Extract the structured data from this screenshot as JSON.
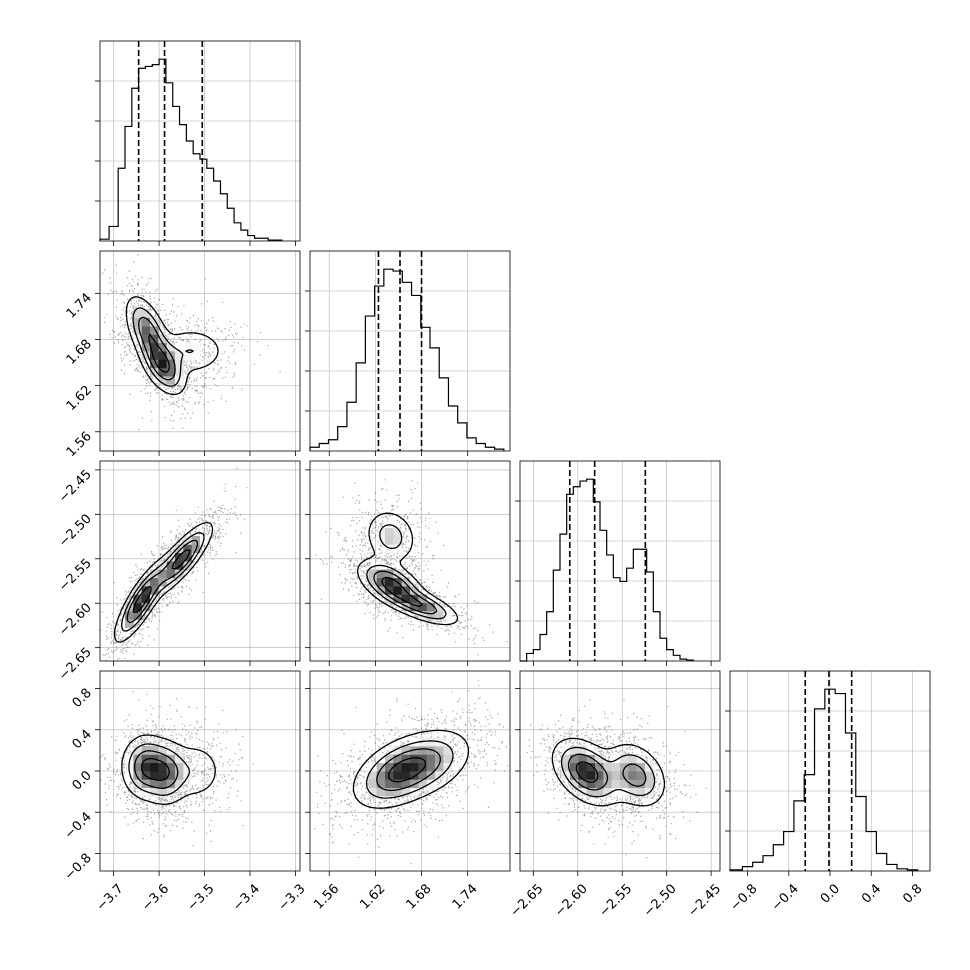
{
  "chart_data": {
    "type": "corner",
    "grid": true,
    "parameters": [
      {
        "range": [
          -3.73,
          -3.29
        ],
        "ticks": [
          -3.7,
          -3.6,
          -3.5,
          -3.4,
          -3.3
        ],
        "tick_labels": [
          "−3.7",
          "−3.6",
          "−3.5",
          "−3.4",
          "−3.3"
        ],
        "quantiles": [
          -3.645,
          -3.588,
          -3.505
        ]
      },
      {
        "range": [
          1.535,
          1.795
        ],
        "ticks": [
          1.56,
          1.62,
          1.68,
          1.74
        ],
        "tick_labels": [
          "1.56",
          "1.62",
          "1.68",
          "1.74"
        ],
        "quantiles": [
          1.624,
          1.652,
          1.68
        ]
      },
      {
        "range": [
          -2.665,
          -2.44
        ],
        "ticks": [
          -2.65,
          -2.6,
          -2.55,
          -2.5,
          -2.45
        ],
        "tick_labels": [
          "−2.65",
          "−2.60",
          "−2.55",
          "−2.50",
          "−2.45"
        ],
        "quantiles": [
          -2.609,
          -2.581,
          -2.524
        ]
      },
      {
        "range": [
          -0.97,
          0.97
        ],
        "ticks": [
          -0.8,
          -0.4,
          0.0,
          0.4,
          0.8
        ],
        "tick_labels": [
          "−0.8",
          "−0.4",
          "0.0",
          "0.4",
          "0.8"
        ],
        "quantiles": [
          -0.24,
          -0.01,
          0.21
        ]
      }
    ],
    "histograms": [
      {
        "edges": [
          -3.73,
          -3.71,
          -3.69,
          -3.675,
          -3.66,
          -3.645,
          -3.63,
          -3.615,
          -3.6,
          -3.585,
          -3.57,
          -3.555,
          -3.54,
          -3.525,
          -3.51,
          -3.495,
          -3.48,
          -3.465,
          -3.45,
          -3.435,
          -3.42,
          -3.405,
          -3.39,
          -3.36,
          -3.33
        ],
        "counts": [
          0.01,
          0.08,
          0.4,
          0.63,
          0.84,
          0.95,
          0.96,
          0.97,
          1.0,
          0.87,
          0.74,
          0.64,
          0.55,
          0.48,
          0.45,
          0.4,
          0.33,
          0.26,
          0.18,
          0.1,
          0.06,
          0.03,
          0.015,
          0.005
        ]
      },
      {
        "edges": [
          1.535,
          1.547,
          1.559,
          1.571,
          1.583,
          1.595,
          1.607,
          1.619,
          1.631,
          1.643,
          1.655,
          1.667,
          1.679,
          1.691,
          1.703,
          1.715,
          1.727,
          1.739,
          1.751,
          1.763,
          1.775,
          1.787
        ],
        "counts": [
          0.02,
          0.04,
          0.06,
          0.13,
          0.26,
          0.47,
          0.72,
          0.88,
          0.97,
          0.96,
          0.9,
          0.83,
          0.66,
          0.55,
          0.39,
          0.24,
          0.15,
          0.07,
          0.04,
          0.02,
          0.01
        ]
      },
      {
        "edges": [
          -2.665,
          -2.6575,
          -2.65,
          -2.6425,
          -2.635,
          -2.6275,
          -2.62,
          -2.6125,
          -2.605,
          -2.5975,
          -2.59,
          -2.5825,
          -2.575,
          -2.5675,
          -2.56,
          -2.5525,
          -2.545,
          -2.5375,
          -2.53,
          -2.5225,
          -2.515,
          -2.5075,
          -2.5,
          -2.4925,
          -2.485,
          -2.4775,
          -2.47
        ],
        "counts": [
          0.0,
          0.04,
          0.06,
          0.14,
          0.26,
          0.48,
          0.67,
          0.88,
          0.92,
          0.95,
          0.96,
          0.84,
          0.69,
          0.56,
          0.44,
          0.42,
          0.49,
          0.59,
          0.59,
          0.47,
          0.26,
          0.12,
          0.06,
          0.03,
          0.01,
          0.005
        ]
      },
      {
        "edges": [
          -0.97,
          -0.85,
          -0.75,
          -0.65,
          -0.55,
          -0.45,
          -0.35,
          -0.25,
          -0.15,
          -0.05,
          0.05,
          0.15,
          0.25,
          0.35,
          0.45,
          0.55,
          0.65,
          0.75,
          0.85
        ],
        "counts": [
          0.005,
          0.02,
          0.04,
          0.07,
          0.12,
          0.18,
          0.32,
          0.44,
          0.74,
          0.83,
          0.81,
          0.63,
          0.34,
          0.18,
          0.08,
          0.03,
          0.01,
          0.005
        ]
      }
    ],
    "pairs": [
      {
        "x_param": 0,
        "y_param": 1,
        "cov": [
          [
            0.0028,
            -0.00042
          ],
          [
            -0.00042,
            0.00125
          ]
        ],
        "components": [
          {
            "mean": [
              -3.625,
              1.69
            ],
            "cov": [
              [
                0.0006,
                -0.00032
              ],
              [
                -0.00032,
                0.00056
              ]
            ],
            "w": 0.4
          },
          {
            "mean": [
              -3.59,
              1.645
            ],
            "cov": [
              [
                0.0006,
                -0.00022
              ],
              [
                -0.00022,
                0.00035
              ]
            ],
            "w": 0.35
          },
          {
            "mean": [
              -3.53,
              1.665
            ],
            "cov": [
              [
                0.0018,
                0.0
              ],
              [
                0.0,
                0.00028
              ]
            ],
            "w": 0.25
          }
        ]
      },
      {
        "x_param": 0,
        "y_param": 2,
        "cov": [
          [
            0.0028,
            0.0012
          ],
          [
            0.0012,
            0.00095
          ]
        ],
        "components": [
          {
            "mean": [
              -3.64,
              -2.598
            ],
            "cov": [
              [
                0.0008,
                0.00052
              ],
              [
                0.00052,
                0.0005
              ]
            ],
            "w": 0.5
          },
          {
            "mean": [
              -3.55,
              -2.55
            ],
            "cov": [
              [
                0.0011,
                0.00055
              ],
              [
                0.00055,
                0.0004
              ]
            ],
            "w": 0.5
          }
        ]
      },
      {
        "x_param": 0,
        "y_param": 3,
        "cov": [
          [
            0.0028,
            0.0
          ],
          [
            0.0,
            0.042
          ]
        ],
        "components": [
          {
            "mean": [
              -3.63,
              0.04
            ],
            "cov": [
              [
                0.0007,
                0.0
              ],
              [
                0.0,
                0.024
              ]
            ],
            "w": 0.45
          },
          {
            "mean": [
              -3.585,
              -0.02
            ],
            "cov": [
              [
                0.0006,
                0.0
              ],
              [
                0.0,
                0.024
              ]
            ],
            "w": 0.35
          },
          {
            "mean": [
              -3.52,
              0.0
            ],
            "cov": [
              [
                0.0012,
                0.0
              ],
              [
                0.0,
                0.026
              ]
            ],
            "w": 0.2
          }
        ]
      },
      {
        "x_param": 1,
        "y_param": 2,
        "cov": [
          [
            0.00125,
            -0.00045
          ],
          [
            -0.00045,
            0.00095
          ]
        ],
        "components": [
          {
            "mean": [
              1.64,
              -2.578
            ],
            "cov": [
              [
                0.00045,
                -0.00015
              ],
              [
                -0.00015,
                0.00018
              ]
            ],
            "w": 0.45
          },
          {
            "mean": [
              1.68,
              -2.603
            ],
            "cov": [
              [
                0.0006,
                -0.00018
              ],
              [
                -0.00018,
                0.00012
              ]
            ],
            "w": 0.3
          },
          {
            "mean": [
              1.64,
              -2.525
            ],
            "cov": [
              [
                0.0003,
                -4e-05
              ],
              [
                -4e-05,
                0.00026
              ]
            ],
            "w": 0.25
          }
        ]
      },
      {
        "x_param": 1,
        "y_param": 3,
        "cov": [
          [
            0.00125,
            0.0002
          ],
          [
            0.0002,
            0.042
          ]
        ],
        "components": [
          {
            "mean": [
              1.648,
              -0.02
            ],
            "cov": [
              [
                0.00085,
                0.0022
              ],
              [
                0.0022,
                0.03
              ]
            ],
            "w": 0.6
          },
          {
            "mean": [
              1.69,
              0.08
            ],
            "cov": [
              [
                0.0009,
                0.002
              ],
              [
                0.002,
                0.03
              ]
            ],
            "w": 0.4
          }
        ]
      },
      {
        "x_param": 2,
        "y_param": 3,
        "cov": [
          [
            0.00095,
            -0.0026
          ],
          [
            -0.0026,
            0.042
          ]
        ],
        "components": [
          {
            "mean": [
              -2.59,
              -0.01
            ],
            "cov": [
              [
                0.00035,
                -0.0012
              ],
              [
                -0.0012,
                0.025
              ]
            ],
            "w": 0.6
          },
          {
            "mean": [
              -2.535,
              -0.04
            ],
            "cov": [
              [
                0.0003,
                -0.0008
              ],
              [
                -0.0008,
                0.025
              ]
            ],
            "w": 0.4
          }
        ]
      }
    ]
  }
}
